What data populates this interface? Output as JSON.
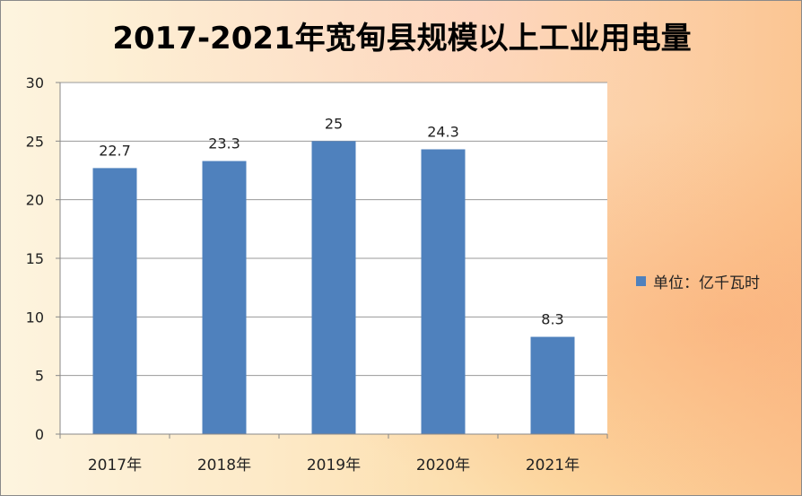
{
  "chart_data": {
    "type": "bar",
    "title": "2017-2021年宽甸县规模以上工业用电量",
    "categories": [
      "2017年",
      "2018年",
      "2019年",
      "2020年",
      "2021年"
    ],
    "series": [
      {
        "name": "单位：亿千瓦时",
        "values": [
          22.7,
          23.3,
          25,
          24.3,
          8.3
        ],
        "color": "#4f81bd"
      }
    ],
    "data_labels": [
      "22.7",
      "23.3",
      "25",
      "24.3",
      "8.3"
    ],
    "ylim": [
      0,
      30
    ],
    "yticks": [
      "0",
      "5",
      "10",
      "15",
      "20",
      "25",
      "30"
    ],
    "xlabel": "",
    "ylabel": "",
    "grid": true,
    "legend_position": "right"
  }
}
